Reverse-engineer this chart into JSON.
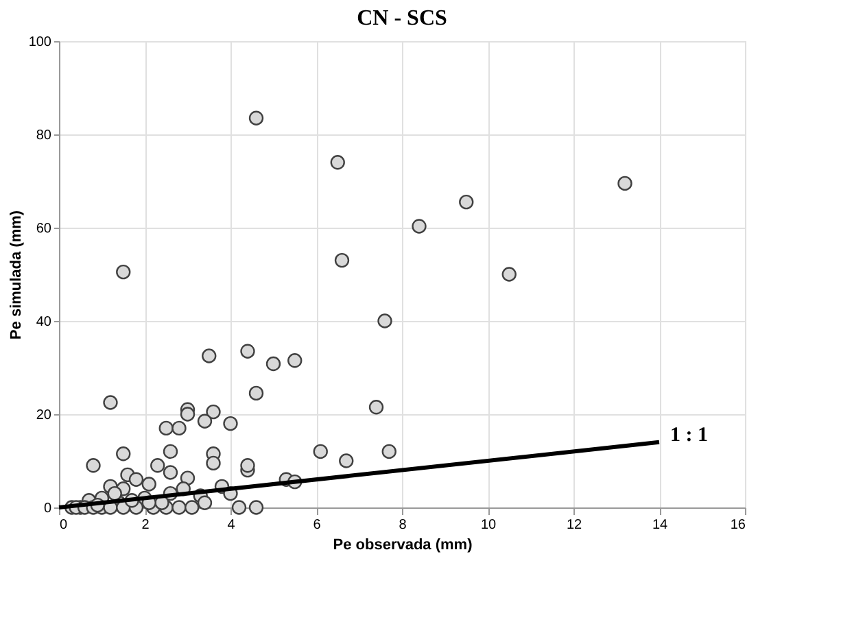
{
  "chart_data": {
    "type": "scatter",
    "title": "CN - SCS",
    "xlabel": "Pe observada (mm)",
    "ylabel": "Pe simulada (mm)",
    "xlim": [
      0,
      16
    ],
    "xticks": [
      0,
      2,
      4,
      6,
      8,
      10,
      12,
      14,
      16
    ],
    "ylim": [
      0,
      100
    ],
    "yticks": [
      0,
      20,
      40,
      60,
      80,
      100
    ],
    "grid": true,
    "marker": "circle",
    "series": [
      {
        "color": "#d9d9d9",
        "x": [
          4.6,
          6.5,
          13.2,
          9.5,
          8.4,
          6.6,
          1.5,
          10.5,
          7.6,
          4.4,
          3.5,
          5.5,
          5.0,
          4.6,
          1.2,
          7.4,
          3.0,
          3.0,
          3.6,
          3.4,
          4.0,
          2.5,
          2.8,
          6.1,
          7.7,
          3.6,
          1.5,
          3.6,
          6.7,
          0.8,
          2.3,
          2.6,
          4.4,
          4.4,
          1.6,
          1.8,
          3.0,
          5.3,
          5.5,
          2.6,
          3.8,
          1.2,
          1.5,
          2.1,
          2.9,
          4.0,
          2.0,
          2.6,
          3.3,
          1.0,
          0.7,
          1.4,
          0.5,
          0.3,
          0.4,
          0.6,
          0.8,
          1.0,
          1.2,
          1.5,
          1.8,
          2.2,
          2.5,
          2.8,
          3.1,
          3.4,
          4.2,
          4.6,
          2.4,
          1.7,
          0.9,
          1.3,
          2.1
        ],
        "values": [
          83.5,
          74,
          69.5,
          65.5,
          60.3,
          53,
          50.5,
          50,
          40,
          33.5,
          32.5,
          31.5,
          30.8,
          24.5,
          22.5,
          21.5,
          21,
          20,
          20.5,
          18.5,
          18,
          17,
          17,
          12,
          12,
          11.5,
          11.5,
          9.5,
          10,
          9,
          9,
          7.5,
          8,
          9,
          7,
          6,
          6.3,
          6,
          5.5,
          12,
          4.5,
          4.5,
          4,
          5,
          4,
          3,
          2,
          3,
          2.5,
          2,
          1.5,
          1,
          0,
          0,
          0,
          0,
          0,
          0,
          0,
          0,
          0,
          0,
          0,
          0,
          0,
          1,
          0,
          0,
          1,
          1.5,
          0.5,
          3,
          1
        ]
      },
      {
        "type": "line",
        "name": "1 : 1",
        "color": "#000000",
        "marker": "none",
        "line_style": "solid",
        "x": [
          0,
          14
        ],
        "values": [
          0,
          14
        ]
      }
    ]
  }
}
